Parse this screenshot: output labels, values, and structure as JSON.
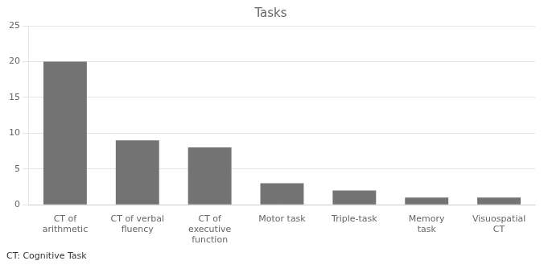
{
  "chart_data": {
    "type": "bar",
    "title": "Tasks",
    "categories": [
      "CT of\narithmetic",
      "CT of verbal\nfluency",
      "CT of\nexecutive\nfunction",
      "Motor task",
      "Triple-task",
      "Memory\ntask",
      "Visuospatial\nCT"
    ],
    "values": [
      20,
      9,
      8,
      3,
      2,
      1,
      1
    ],
    "color": "#737373",
    "ylim": [
      0,
      25
    ],
    "yticks": [
      0,
      5,
      10,
      15,
      20,
      25
    ],
    "grid": true,
    "annotations": [
      "CT: Cognitive Task"
    ]
  }
}
